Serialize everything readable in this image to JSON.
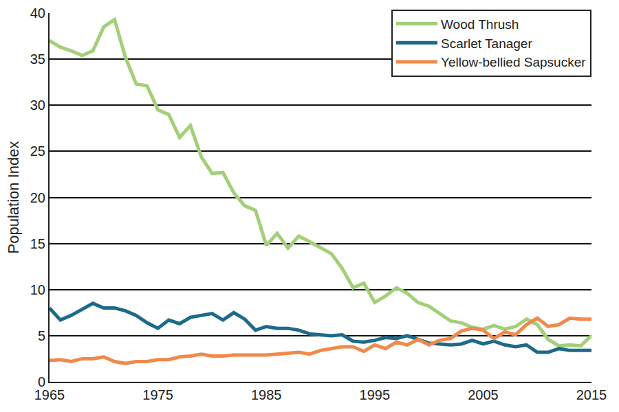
{
  "chart_data": {
    "type": "line",
    "y_label": "Population Index",
    "x": [
      1965,
      1966,
      1967,
      1968,
      1969,
      1970,
      1971,
      1972,
      1973,
      1974,
      1975,
      1976,
      1977,
      1978,
      1979,
      1980,
      1981,
      1982,
      1983,
      1984,
      1985,
      1986,
      1987,
      1988,
      1989,
      1990,
      1991,
      1992,
      1993,
      1994,
      1995,
      1996,
      1997,
      1998,
      1999,
      2000,
      2001,
      2002,
      2003,
      2004,
      2005,
      2006,
      2007,
      2008,
      2009,
      2010,
      2011,
      2012,
      2013,
      2014,
      2015
    ],
    "series": [
      {
        "name": "Wood Thrush",
        "color": "#a2cf79",
        "values": [
          37.0,
          36.3,
          35.9,
          35.4,
          35.9,
          38.5,
          39.3,
          35.2,
          32.3,
          32.1,
          29.5,
          29.0,
          26.5,
          27.8,
          24.4,
          22.6,
          22.7,
          20.5,
          19.1,
          18.6,
          14.8,
          16.1,
          14.5,
          15.8,
          15.2,
          14.6,
          13.9,
          12.3,
          10.2,
          10.7,
          8.6,
          9.3,
          10.2,
          9.6,
          8.6,
          8.2,
          7.4,
          6.6,
          6.4,
          5.9,
          5.7,
          6.1,
          5.7,
          6.0,
          6.8,
          6.2,
          4.6,
          3.9,
          4.0,
          3.9,
          5.0
        ]
      },
      {
        "name": "Scarlet Tanager",
        "color": "#1d6a8a",
        "values": [
          8.0,
          6.7,
          7.2,
          7.8,
          8.5,
          8.0,
          8.0,
          7.7,
          7.2,
          6.4,
          5.8,
          6.7,
          6.3,
          7.0,
          7.2,
          7.4,
          6.7,
          7.5,
          6.8,
          5.6,
          6.0,
          5.8,
          5.8,
          5.6,
          5.2,
          5.1,
          5.0,
          5.1,
          4.4,
          4.3,
          4.5,
          4.8,
          4.7,
          5.0,
          4.6,
          4.2,
          4.1,
          4.0,
          4.1,
          4.5,
          4.1,
          4.4,
          4.0,
          3.8,
          4.0,
          3.2,
          3.2,
          3.6,
          3.4,
          3.4,
          3.4
        ]
      },
      {
        "name": "Yellow-bellied Sapsucker",
        "color": "#f0894a",
        "values": [
          2.3,
          2.4,
          2.2,
          2.5,
          2.5,
          2.7,
          2.2,
          2.0,
          2.2,
          2.2,
          2.4,
          2.4,
          2.7,
          2.8,
          3.0,
          2.8,
          2.8,
          2.9,
          2.9,
          2.9,
          2.9,
          3.0,
          3.1,
          3.2,
          3.0,
          3.4,
          3.6,
          3.8,
          3.8,
          3.3,
          4.0,
          3.6,
          4.3,
          4.0,
          4.6,
          4.0,
          4.5,
          4.7,
          5.5,
          5.8,
          5.6,
          4.7,
          5.4,
          5.1,
          6.2,
          6.9,
          6.0,
          6.2,
          6.9,
          6.8,
          6.8
        ]
      }
    ],
    "xlim": [
      1965,
      2015
    ],
    "xticks": [
      1965,
      1975,
      1985,
      1995,
      2005,
      2015
    ],
    "ylim": [
      0,
      40
    ],
    "yticks": [
      0,
      5,
      10,
      15,
      20,
      25,
      30,
      35,
      40
    ],
    "grid": true,
    "legend": "upper right"
  }
}
